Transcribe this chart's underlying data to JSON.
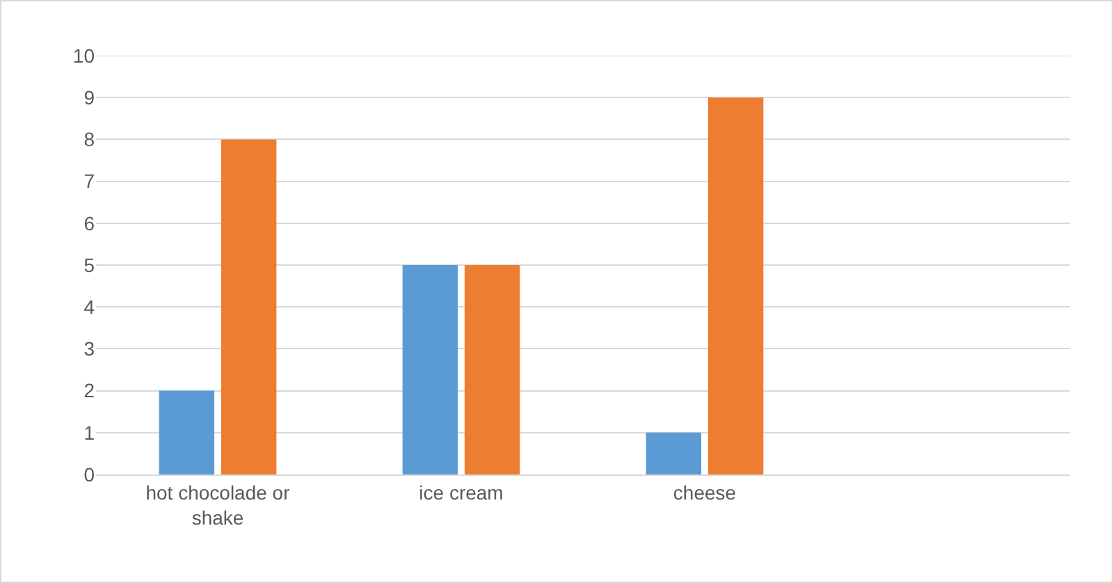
{
  "chart_data": {
    "type": "bar",
    "categories": [
      "hot chocolade or shake",
      "ice cream",
      "cheese",
      null
    ],
    "series": [
      {
        "color": "#5b9bd5",
        "values": [
          2,
          5,
          1,
          null
        ]
      },
      {
        "color": "#ed7d31",
        "values": [
          8,
          5,
          9,
          null
        ]
      }
    ],
    "ylim": [
      0,
      10
    ],
    "yticks": [
      0,
      1,
      2,
      3,
      4,
      5,
      6,
      7,
      8,
      9,
      10
    ],
    "grid": "y"
  }
}
